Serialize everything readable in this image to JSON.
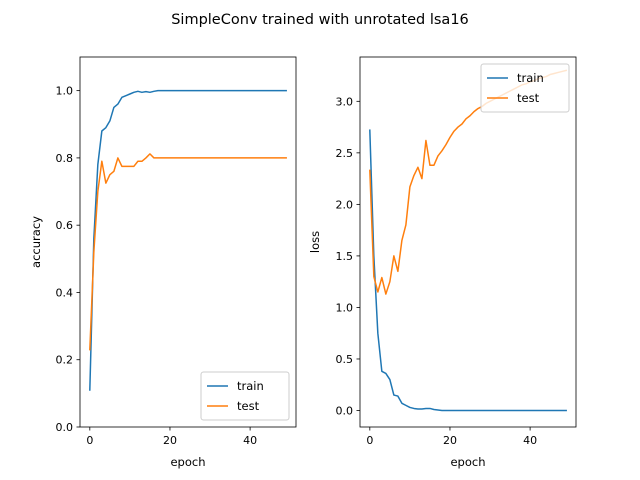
{
  "figure": {
    "title": "SimpleConv trained with unrotated lsa16"
  },
  "colors": {
    "train": "#1f77b4",
    "test": "#ff7f0e",
    "axes": "#000000",
    "background": "#ffffff",
    "legend_border": "#cccccc"
  },
  "chart_data": [
    {
      "type": "line",
      "xlabel": "epoch",
      "ylabel": "accuracy",
      "xlim": [
        -2.45,
        51.45
      ],
      "ylim": [
        0,
        1.1
      ],
      "xticks": [
        0,
        20,
        40
      ],
      "yticks": [
        0.0,
        0.2,
        0.4,
        0.6,
        0.8,
        1.0
      ],
      "ytick_labels": [
        "0.0",
        "0.2",
        "0.4",
        "0.6",
        "0.8",
        "1.0"
      ],
      "grid": false,
      "legend_position": "lower-right",
      "x": [
        0,
        1,
        2,
        3,
        4,
        5,
        6,
        7,
        8,
        9,
        10,
        11,
        12,
        13,
        14,
        15,
        16,
        17,
        18,
        19,
        20,
        21,
        22,
        23,
        24,
        25,
        26,
        27,
        28,
        29,
        30,
        31,
        32,
        33,
        34,
        35,
        36,
        37,
        38,
        39,
        40,
        41,
        42,
        43,
        44,
        45,
        46,
        47,
        48,
        49
      ],
      "series": [
        {
          "name": "train",
          "values": [
            0.11,
            0.56,
            0.78,
            0.88,
            0.89,
            0.91,
            0.95,
            0.96,
            0.98,
            0.985,
            0.99,
            0.995,
            0.998,
            0.995,
            0.997,
            0.995,
            0.998,
            1,
            1,
            1,
            1,
            1,
            1,
            1,
            1,
            1,
            1,
            1,
            1,
            1,
            1,
            1,
            1,
            1,
            1,
            1,
            1,
            1,
            1,
            1,
            1,
            1,
            1,
            1,
            1,
            1,
            1,
            1,
            1,
            1
          ]
        },
        {
          "name": "test",
          "values": [
            0.23,
            0.52,
            0.7,
            0.79,
            0.725,
            0.75,
            0.76,
            0.8,
            0.775,
            0.775,
            0.775,
            0.775,
            0.79,
            0.79,
            0.8,
            0.812,
            0.8,
            0.8,
            0.8,
            0.8,
            0.8,
            0.8,
            0.8,
            0.8,
            0.8,
            0.8,
            0.8,
            0.8,
            0.8,
            0.8,
            0.8,
            0.8,
            0.8,
            0.8,
            0.8,
            0.8,
            0.8,
            0.8,
            0.8,
            0.8,
            0.8,
            0.8,
            0.8,
            0.8,
            0.8,
            0.8,
            0.8,
            0.8,
            0.8,
            0.8
          ]
        }
      ]
    },
    {
      "type": "line",
      "xlabel": "epoch",
      "ylabel": "loss",
      "xlim": [
        -2.45,
        51.45
      ],
      "ylim": [
        -0.16,
        3.43
      ],
      "xticks": [
        0,
        20,
        40
      ],
      "yticks": [
        0.0,
        0.5,
        1.0,
        1.5,
        2.0,
        2.5,
        3.0
      ],
      "ytick_labels": [
        "0.0",
        "0.5",
        "1.0",
        "1.5",
        "2.0",
        "2.5",
        "3.0"
      ],
      "grid": false,
      "legend_position": "upper-right",
      "x": [
        0,
        1,
        2,
        3,
        4,
        5,
        6,
        7,
        8,
        9,
        10,
        11,
        12,
        13,
        14,
        15,
        16,
        17,
        18,
        19,
        20,
        21,
        22,
        23,
        24,
        25,
        26,
        27,
        28,
        29,
        30,
        31,
        32,
        33,
        34,
        35,
        36,
        37,
        38,
        39,
        40,
        41,
        42,
        43,
        44,
        45,
        46,
        47,
        48,
        49
      ],
      "series": [
        {
          "name": "train",
          "values": [
            2.72,
            1.5,
            0.75,
            0.38,
            0.36,
            0.3,
            0.15,
            0.14,
            0.07,
            0.05,
            0.03,
            0.02,
            0.015,
            0.015,
            0.02,
            0.02,
            0.01,
            0.005,
            0,
            0,
            0,
            0,
            0,
            0,
            0,
            0,
            0,
            0,
            0,
            0,
            0,
            0,
            0,
            0,
            0,
            0,
            0,
            0,
            0,
            0,
            0,
            0,
            0,
            0,
            0,
            0,
            0,
            0,
            0,
            0
          ]
        },
        {
          "name": "test",
          "values": [
            2.33,
            1.3,
            1.15,
            1.29,
            1.13,
            1.25,
            1.5,
            1.35,
            1.65,
            1.8,
            2.17,
            2.28,
            2.36,
            2.25,
            2.62,
            2.38,
            2.38,
            2.47,
            2.52,
            2.58,
            2.65,
            2.71,
            2.75,
            2.78,
            2.83,
            2.86,
            2.9,
            2.93,
            2.95,
            2.98,
            3.0,
            3.02,
            3.04,
            3.06,
            3.08,
            3.1,
            3.12,
            3.14,
            3.16,
            3.17,
            3.19,
            3.2,
            3.22,
            3.23,
            3.24,
            3.26,
            3.27,
            3.28,
            3.29,
            3.3
          ]
        }
      ]
    }
  ]
}
